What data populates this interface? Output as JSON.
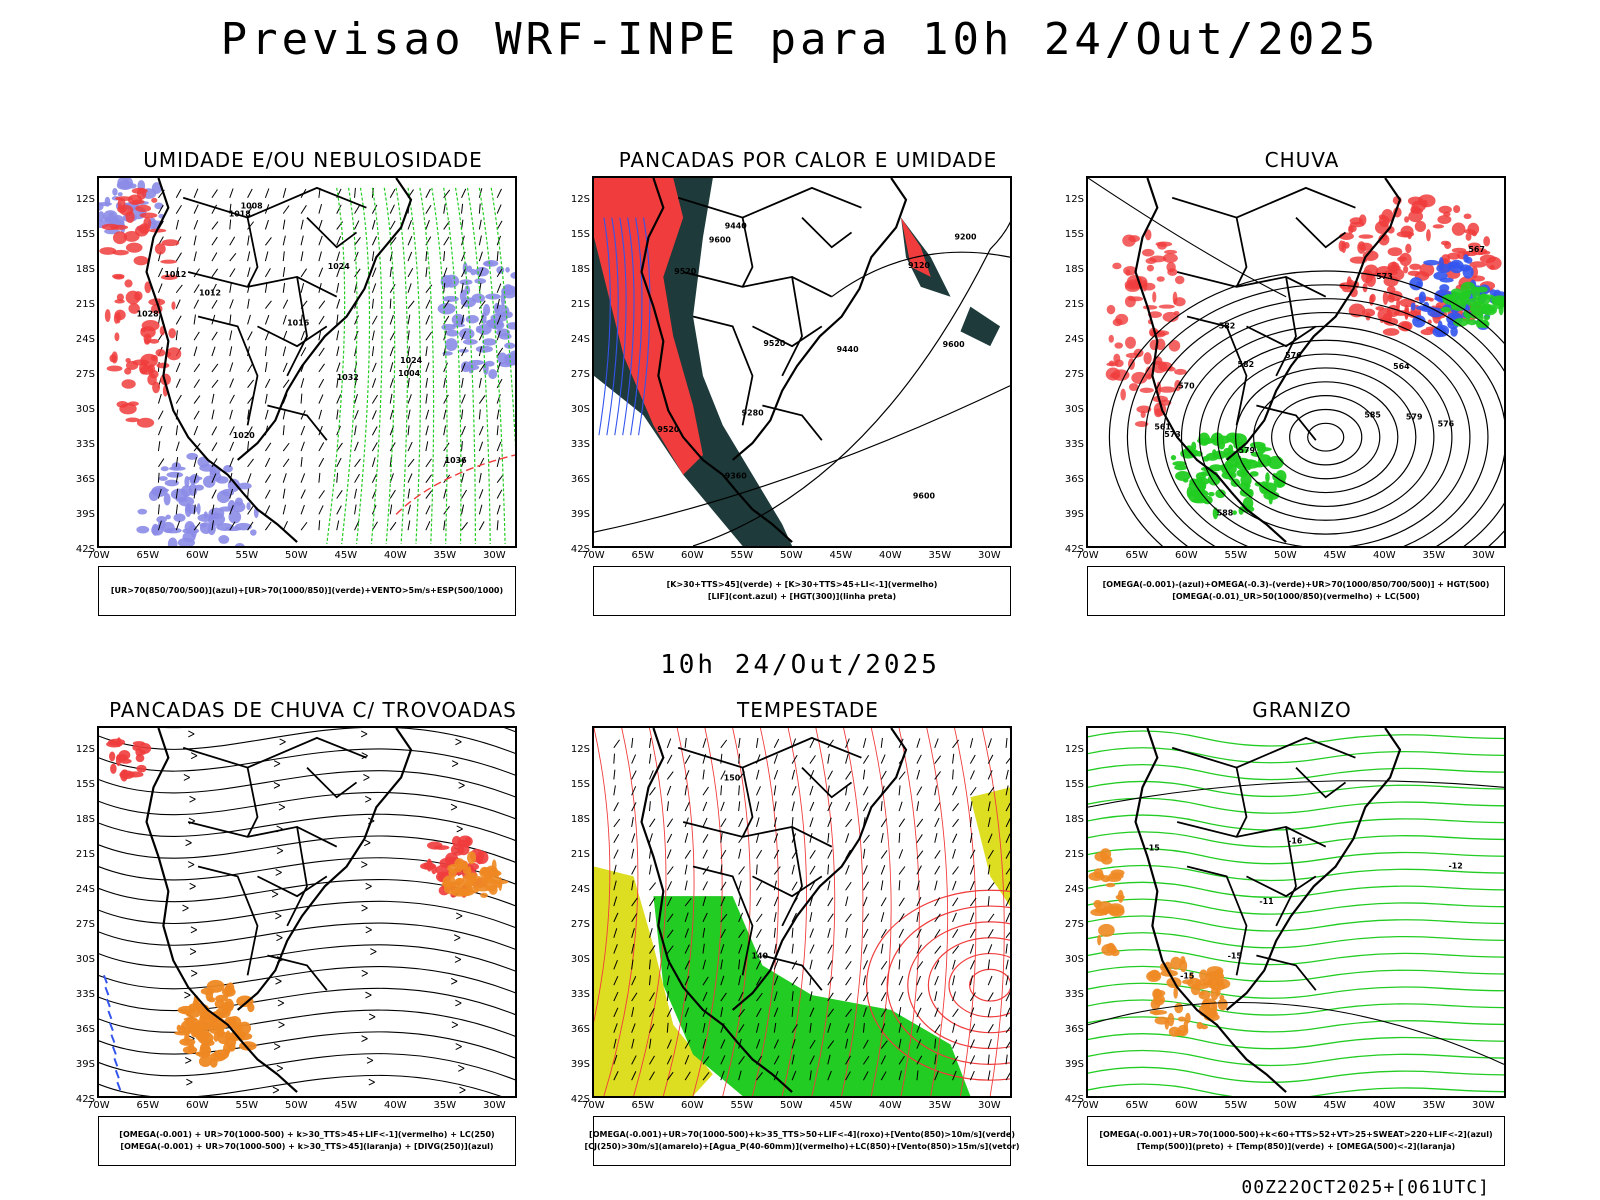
{
  "page": {
    "main_title": "Previsao WRF-INPE  para 10h 24/Out/2025",
    "mid_title": "10h 24/Out/2025",
    "footer_stamp": "00Z22OCT2025+[061UTC]"
  },
  "axes": {
    "latitudes": [
      "12S",
      "15S",
      "18S",
      "21S",
      "24S",
      "27S",
      "30S",
      "33S",
      "36S",
      "39S",
      "42S"
    ],
    "longitudes": [
      "70W",
      "65W",
      "60W",
      "55W",
      "50W",
      "45W",
      "40W",
      "35W",
      "30W"
    ]
  },
  "colors": {
    "red": "#f03c3c",
    "green": "#22cc22",
    "blue": "#3355ee",
    "lavender": "#8c8ce8",
    "darkteal": "#1e3a3a",
    "orange": "#ee8822",
    "yellow": "#dddd22",
    "purple": "#9922cc"
  },
  "panels": [
    {
      "title": "UMIDADE E/OU NEBULOSIDADE",
      "legend": [
        "[UR>70(850/700/500)](azul)+[UR>70(1000/850)](verde)+VENTO>5m/s+ESP(500/1000)"
      ],
      "labels": [
        "1012",
        "1012",
        "1016",
        "1018",
        "1020",
        "1024",
        "1028",
        "1032",
        "1036",
        "1004",
        "1008",
        "1024"
      ]
    },
    {
      "title": "PANCADAS POR CALOR E UMIDADE",
      "legend": [
        "[K>30+TTS>45](verde) + [K>30+TTS>45+LI<-1](vermelho)",
        "[LIF](cont.azul) + [HGT(300)](linha preta)"
      ],
      "labels": [
        "9600",
        "9600",
        "9520",
        "9600",
        "9520",
        "9520",
        "9440",
        "9360",
        "9280",
        "9200",
        "9120",
        "9440"
      ]
    },
    {
      "title": "CHUVA",
      "legend": [
        "[OMEGA(-0.001)-(azul)+OMEGA(-0.3)-(verde)+UR>70(1000/850/700/500)] + HGT(500)",
        "[OMEGA(-0.01)_UR>50(1000/850)(vermelho) + LC(500)"
      ],
      "labels": [
        "588",
        "585",
        "582",
        "579",
        "576",
        "573",
        "570",
        "567",
        "564",
        "561",
        "582",
        "579",
        "576",
        "573"
      ]
    },
    {
      "title": "PANCADAS DE CHUVA C/ TROVOADAS",
      "legend": [
        "[OMEGA(-0.001) + UR>70(1000-500) + k>30_TTS>45+LIF<-1](vermelho) + LC(250)",
        "[OMEGA(-0.001) + UR>70(1000-500) + k>30_TTS>45](laranja) + [DIVG(250)](azul)"
      ],
      "labels": []
    },
    {
      "title": "TEMPESTADE",
      "legend": [
        "[OMEGA(-0.001)+UR>70(1000-500)+k>35_TTS>50+LIF<-4](roxo)+[Vento(850)>10m/s](verde)",
        "[CJ(250)>30m/s](amarelo)+[Agua_P(40-60mm)](vermelho)+LC(850)+[Vento(850)>15m/s](vetor)"
      ],
      "labels": [
        "140",
        "150"
      ]
    },
    {
      "title": "GRANIZO",
      "legend": [
        "[OMEGA(-0.001)+UR>70(1000-500)+k<60+TTS>52+VT>25+SWEAT>220+LIF<-2](azul)",
        "[Temp(500)](preto) + [Temp(850)](verde) + [OMEGA(500)<-2](laranja)"
      ],
      "labels": [
        "-11",
        "-15",
        "-15",
        "-12",
        "-15",
        "-16"
      ]
    }
  ]
}
